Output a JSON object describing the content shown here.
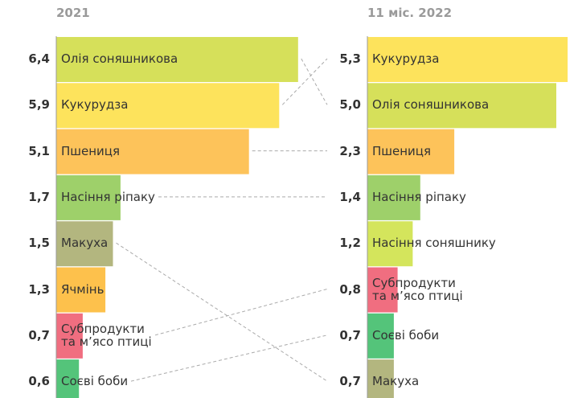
{
  "chart_data": [
    {
      "type": "bar",
      "title": "2021",
      "categories": [
        "Олія соняшникова",
        "Кукурудза",
        "Пшениця",
        "Насіння ріпаку",
        "Макуха",
        "Ячмінь",
        "Субпродукти\nта м’ясо птиці",
        "Соєві боби"
      ],
      "values": [
        6.4,
        5.9,
        5.1,
        1.7,
        1.5,
        1.3,
        0.7,
        0.6
      ],
      "value_labels": [
        "6,4",
        "5,9",
        "5,1",
        "1,7",
        "1,5",
        "1,3",
        "0,7",
        "0,6"
      ],
      "colors": [
        "#d6e05a",
        "#fde35c",
        "#fdc35a",
        "#9ed06a",
        "#b3b67f",
        "#fdc14c",
        "#f06e80",
        "#54c47a"
      ]
    },
    {
      "type": "bar",
      "title": "11 міс. 2022",
      "categories": [
        "Кукурудза",
        "Олія соняшникова",
        "Пшениця",
        "Насіння ріпаку",
        "Насіння соняшнику",
        "Субпродукти\nта м’ясо птиці",
        "Соєві боби",
        "Макуха"
      ],
      "values": [
        5.3,
        5.0,
        2.3,
        1.4,
        1.2,
        0.8,
        0.7,
        0.7
      ],
      "value_labels": [
        "5,3",
        "5,0",
        "2,3",
        "1,4",
        "1,2",
        "0,8",
        "0,7",
        "0,7"
      ],
      "colors": [
        "#fde35c",
        "#d6e05a",
        "#fdc35a",
        "#9ed06a",
        "#d4e55c",
        "#f06e80",
        "#54c47a",
        "#b3b67f"
      ]
    }
  ]
}
